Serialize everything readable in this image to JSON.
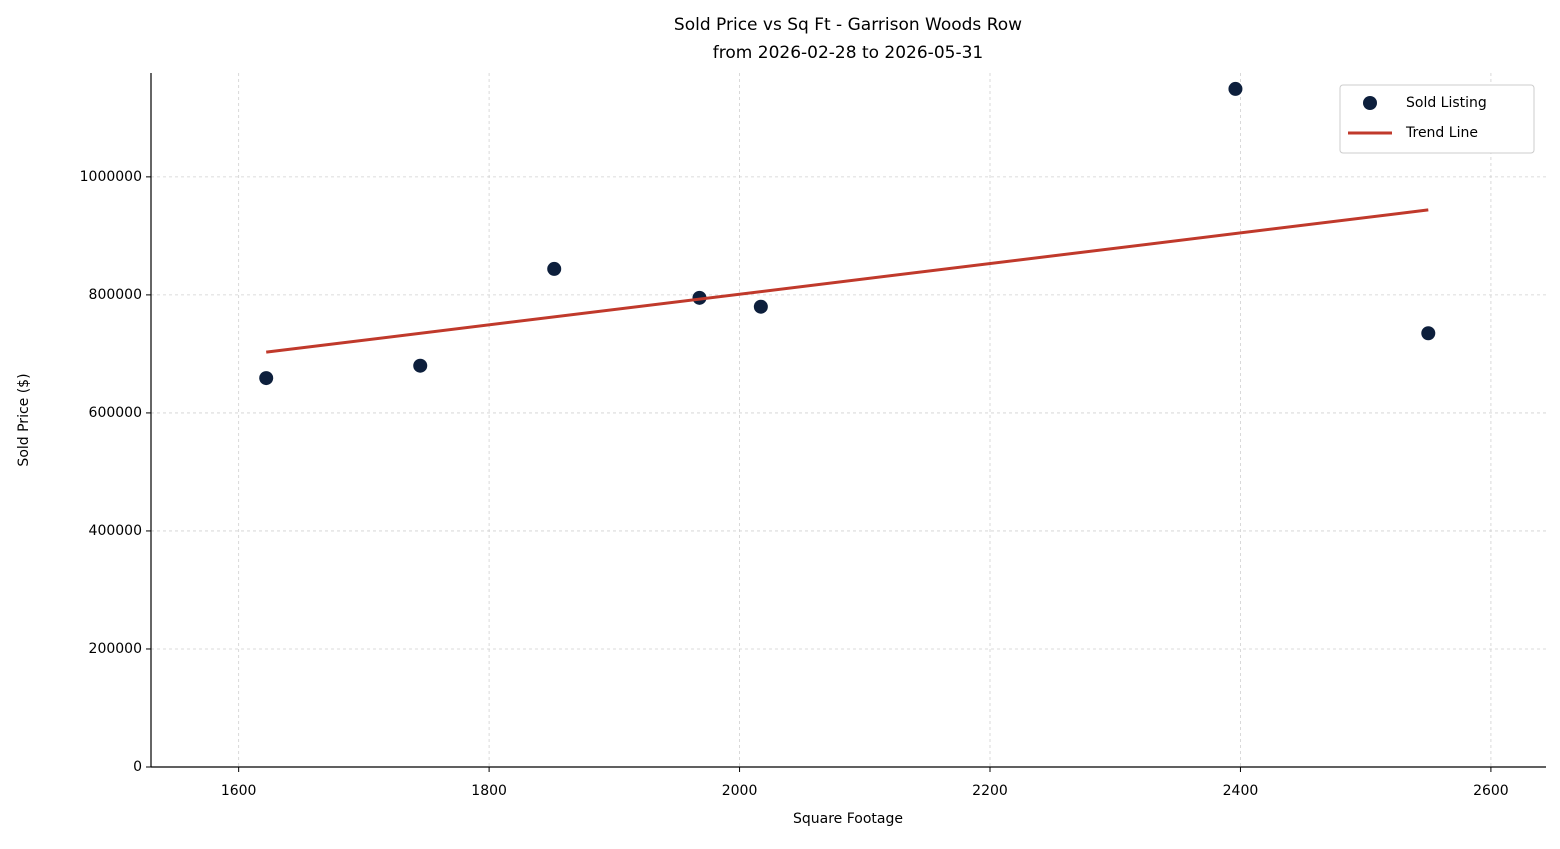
{
  "chart_data": {
    "type": "scatter",
    "title": "Sold Price vs Sq Ft - Garrison Woods Row",
    "subtitle": "from 2026-02-28 to 2026-05-31",
    "x_label": "Square Footage",
    "y_label": "Sold Price ($)",
    "series": [
      {
        "name": "Sold Listing",
        "kind": "scatter",
        "color": "#0d1f3c",
        "x": [
          1622,
          1745,
          1852,
          1968,
          2017,
          2396,
          2550
        ],
        "values": [
          659000,
          680000,
          844000,
          795000,
          780000,
          1149000,
          735000
        ]
      },
      {
        "name": "Trend Line",
        "kind": "line",
        "color": "#c0392b",
        "x": [
          1622,
          2550
        ],
        "values": [
          703000,
          944000
        ]
      }
    ],
    "xlim": [
      1530,
      2644
    ],
    "ylim": [
      0,
      1176000
    ],
    "xticks": [
      1600,
      1800,
      2000,
      2200,
      2400,
      2600
    ],
    "yticks": [
      0,
      200000,
      400000,
      600000,
      800000,
      1000000
    ],
    "grid": true,
    "legend": "upper right"
  }
}
